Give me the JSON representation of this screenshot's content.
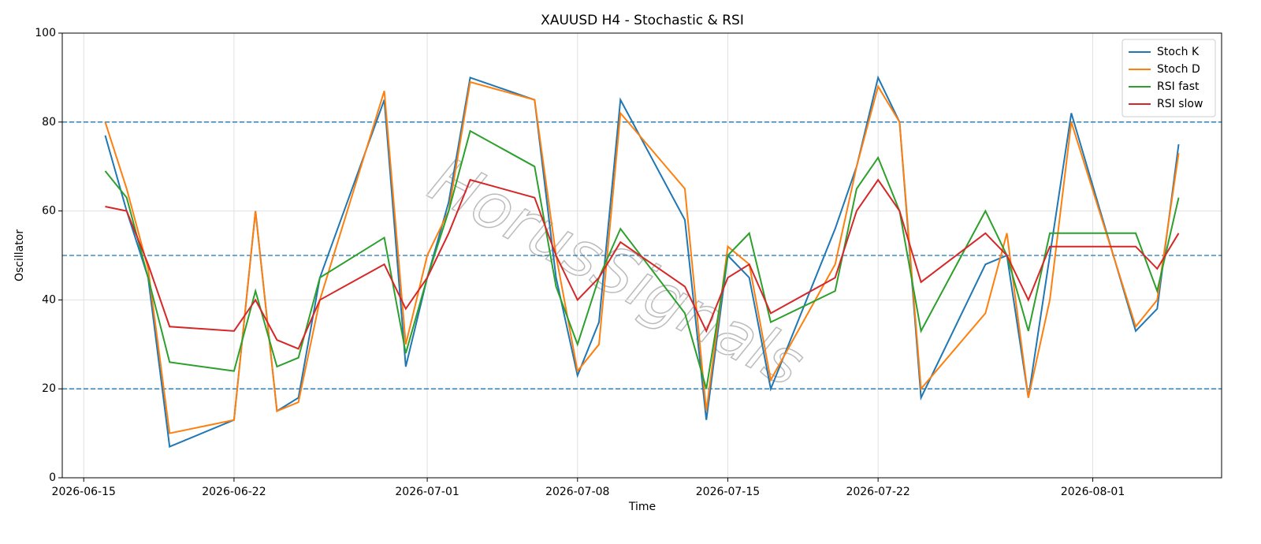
{
  "chart_data": {
    "type": "line",
    "title": "XAUUSD H4 - Stochastic & RSI",
    "x_label": "Time",
    "y_label": "Oscillator",
    "watermark": "HorusSignals",
    "x": [
      "2026-06-16",
      "2026-06-17",
      "2026-06-18",
      "2026-06-19",
      "2026-06-22",
      "2026-06-23",
      "2026-06-24",
      "2026-06-25",
      "2026-06-26",
      "2026-06-29",
      "2026-06-30",
      "2026-07-01",
      "2026-07-02",
      "2026-07-03",
      "2026-07-06",
      "2026-07-07",
      "2026-07-08",
      "2026-07-09",
      "2026-07-10",
      "2026-07-13",
      "2026-07-14",
      "2026-07-15",
      "2026-07-16",
      "2026-07-17",
      "2026-07-20",
      "2026-07-21",
      "2026-07-22",
      "2026-07-23",
      "2026-07-24",
      "2026-07-27",
      "2026-07-28",
      "2026-07-29",
      "2026-07-30",
      "2026-07-31",
      "2026-08-03",
      "2026-08-04",
      "2026-08-05"
    ],
    "series": [
      {
        "name": "Stoch K",
        "color": "#1f77b4",
        "values": [
          77,
          60,
          45,
          7,
          13,
          60,
          15,
          18,
          45,
          85,
          25,
          45,
          62,
          90,
          85,
          45,
          23,
          35,
          85,
          58,
          13,
          50,
          45,
          20,
          56,
          70,
          90,
          80,
          18,
          48,
          50,
          18,
          50,
          82,
          33,
          38,
          75
        ]
      },
      {
        "name": "Stoch D",
        "color": "#ff7f0e",
        "values": [
          80,
          65,
          47,
          10,
          13,
          60,
          15,
          17,
          40,
          87,
          30,
          50,
          60,
          89,
          85,
          50,
          24,
          30,
          82,
          65,
          15,
          52,
          48,
          22,
          48,
          70,
          88,
          80,
          20,
          37,
          55,
          18,
          40,
          80,
          34,
          40,
          73
        ]
      },
      {
        "name": "RSI fast",
        "color": "#2ca02c",
        "values": [
          69,
          63,
          45,
          26,
          24,
          42,
          25,
          27,
          45,
          54,
          28,
          45,
          60,
          78,
          70,
          43,
          30,
          45,
          56,
          37,
          20,
          50,
          55,
          35,
          42,
          65,
          72,
          60,
          33,
          60,
          50,
          33,
          55,
          55,
          55,
          42,
          63
        ]
      },
      {
        "name": "RSI slow",
        "color": "#d62728",
        "values": [
          61,
          60,
          48,
          34,
          33,
          40,
          31,
          29,
          40,
          48,
          38,
          45,
          55,
          67,
          63,
          50,
          40,
          45,
          53,
          43,
          33,
          45,
          48,
          37,
          45,
          60,
          67,
          60,
          44,
          55,
          50,
          40,
          52,
          52,
          52,
          47,
          55
        ]
      }
    ],
    "xlim": [
      "2026-06-14",
      "2026-08-07"
    ],
    "xticks": [
      "2026-06-15",
      "2026-06-22",
      "2026-07-01",
      "2026-07-08",
      "2026-07-15",
      "2026-07-22",
      "2026-08-01"
    ],
    "ylim": [
      0,
      100
    ],
    "yticks": [
      0,
      20,
      40,
      60,
      80,
      100
    ],
    "hlines": [
      20,
      50,
      80
    ],
    "hline_color": "#1f77b4",
    "grid": true,
    "legend": "upper right"
  }
}
